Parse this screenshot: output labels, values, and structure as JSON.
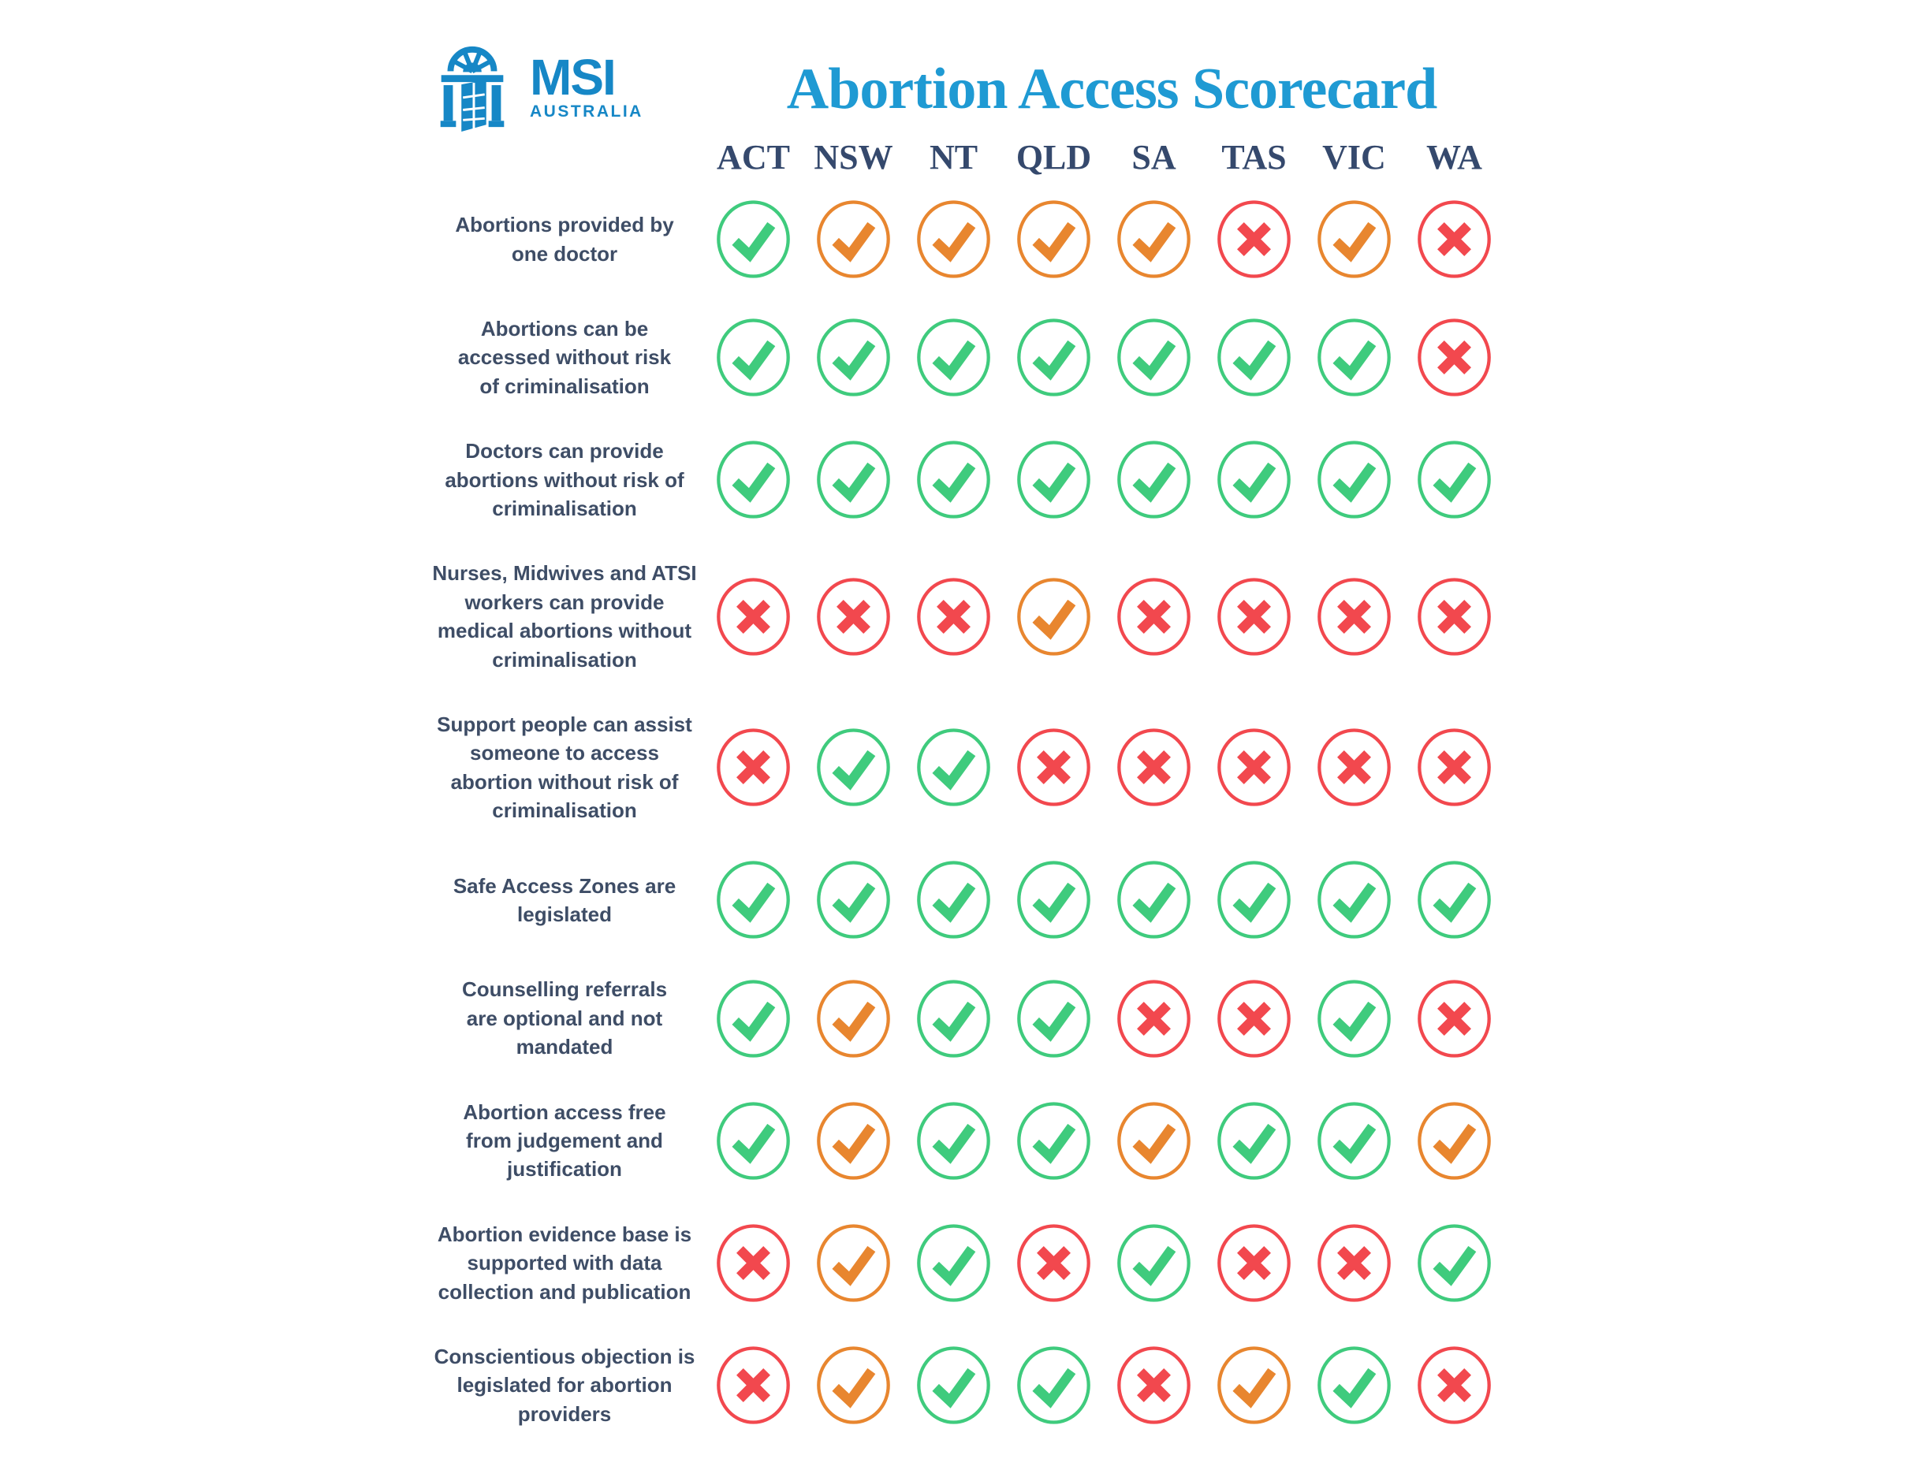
{
  "logo": {
    "brand": "MSI",
    "region": "AUSTRALIA",
    "color": "#1687c6"
  },
  "title": {
    "text": "Abortion Access Scorecard",
    "color": "#1f9ad3"
  },
  "icons": {
    "green-check": {
      "shape": "check",
      "color": "#3fcb7d",
      "meaning": "yes"
    },
    "orange-check": {
      "shape": "check",
      "color": "#e8862f",
      "meaning": "partial"
    },
    "red-cross": {
      "shape": "cross",
      "color": "#f2484e",
      "meaning": "no"
    }
  },
  "text_colors": {
    "column_header": "#35496d",
    "row_label": "#3e4d66"
  },
  "chart_data": {
    "type": "table",
    "title": "Abortion Access Scorecard",
    "columns": [
      "ACT",
      "NSW",
      "NT",
      "QLD",
      "SA",
      "TAS",
      "VIC",
      "WA"
    ],
    "rows": [
      "Abortions provided by\none doctor",
      "Abortions can be\naccessed without risk\nof criminalisation",
      "Doctors can provide\nabortions without risk of\ncriminalisation",
      "Nurses, Midwives and ATSI\nworkers can provide\nmedical abortions without\ncriminalisation",
      "Support people can assist\nsomeone to access\nabortion without risk of\ncriminalisation",
      "Safe Access Zones are\nlegislated",
      "Counselling referrals\nare optional and not\nmandated",
      "Abortion access free\nfrom judgement and\njustification",
      "Abortion evidence base is\nsupported with data\ncollection and publication",
      "Conscientious objection is\nlegislated for abortion\nproviders"
    ],
    "values": [
      [
        "green-check",
        "orange-check",
        "orange-check",
        "orange-check",
        "orange-check",
        "red-cross",
        "orange-check",
        "red-cross"
      ],
      [
        "green-check",
        "green-check",
        "green-check",
        "green-check",
        "green-check",
        "green-check",
        "green-check",
        "red-cross"
      ],
      [
        "green-check",
        "green-check",
        "green-check",
        "green-check",
        "green-check",
        "green-check",
        "green-check",
        "green-check"
      ],
      [
        "red-cross",
        "red-cross",
        "red-cross",
        "orange-check",
        "red-cross",
        "red-cross",
        "red-cross",
        "red-cross"
      ],
      [
        "red-cross",
        "green-check",
        "green-check",
        "red-cross",
        "red-cross",
        "red-cross",
        "red-cross",
        "red-cross"
      ],
      [
        "green-check",
        "green-check",
        "green-check",
        "green-check",
        "green-check",
        "green-check",
        "green-check",
        "green-check"
      ],
      [
        "green-check",
        "orange-check",
        "green-check",
        "green-check",
        "red-cross",
        "red-cross",
        "green-check",
        "red-cross"
      ],
      [
        "green-check",
        "orange-check",
        "green-check",
        "green-check",
        "orange-check",
        "green-check",
        "green-check",
        "orange-check"
      ],
      [
        "red-cross",
        "orange-check",
        "green-check",
        "red-cross",
        "green-check",
        "red-cross",
        "red-cross",
        "green-check"
      ],
      [
        "red-cross",
        "orange-check",
        "green-check",
        "green-check",
        "red-cross",
        "orange-check",
        "green-check",
        "red-cross"
      ]
    ],
    "value_legend": {
      "green-check": "yes",
      "orange-check": "partial",
      "red-cross": "no"
    }
  }
}
